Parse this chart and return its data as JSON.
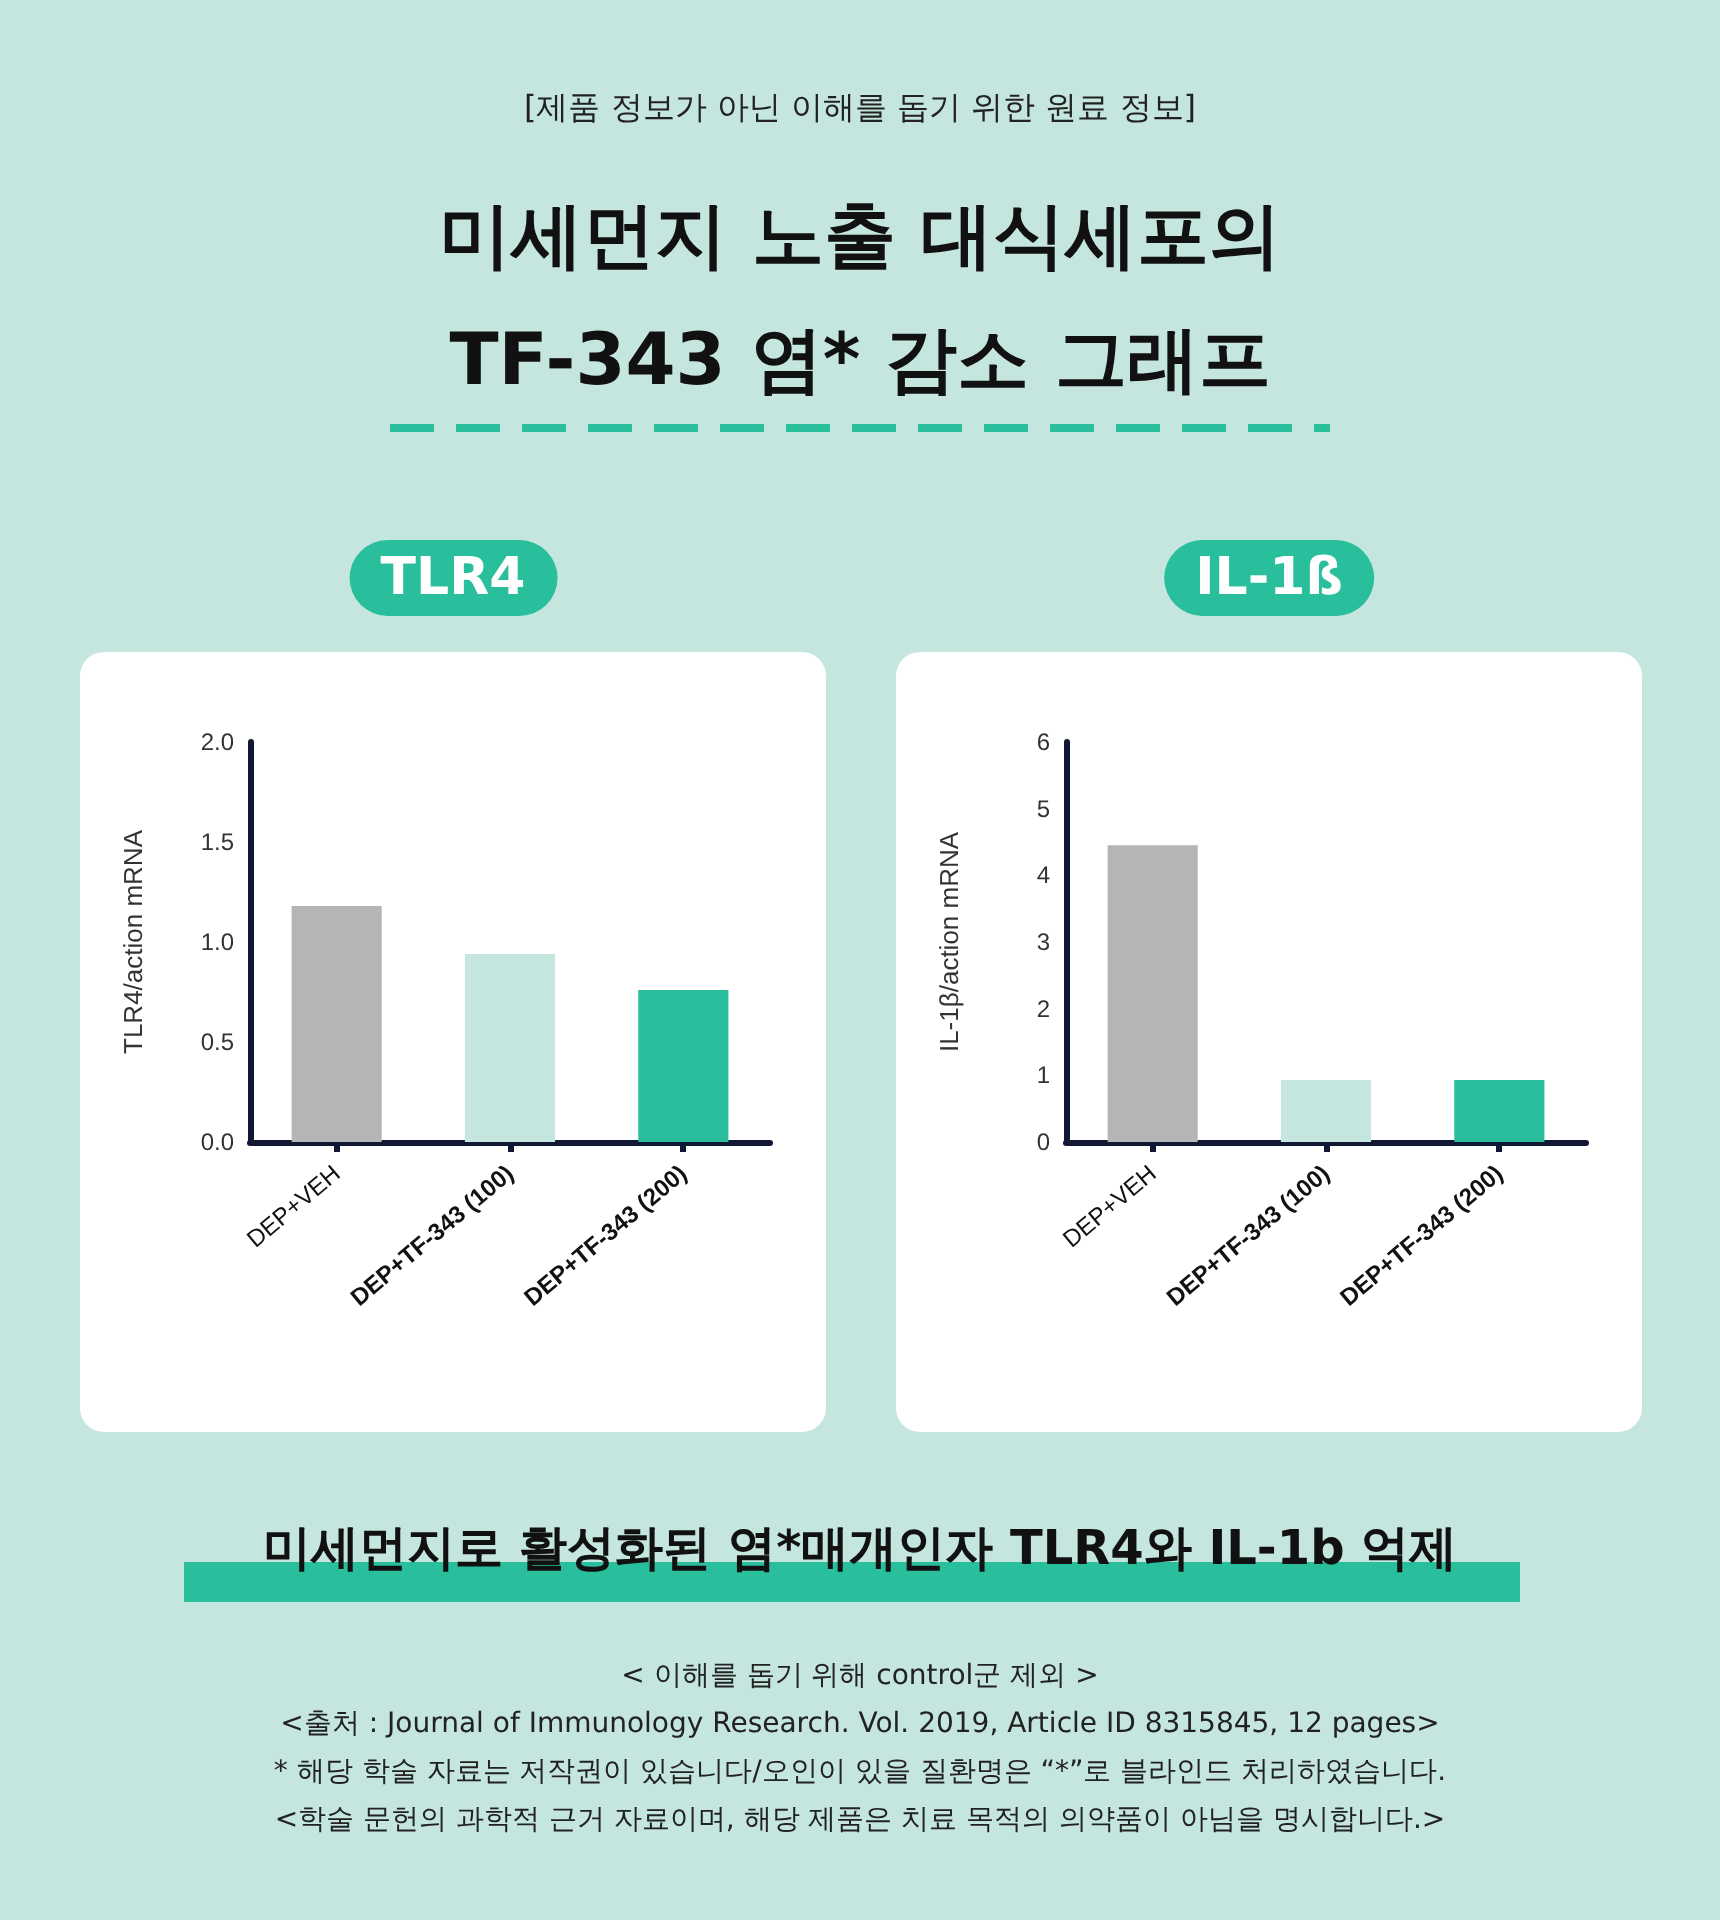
{
  "chart_data": [
    {
      "type": "other",
      "subtitle": "[제품 정보가 아닌 이해를 돕기 위한 원료 정보]",
      "title": "미세먼지 노출 대식세포의\nTF-343  염* 감소 그래프"
    },
    {
      "type": "bar",
      "title": "TLR4",
      "ylabel": "TLR4/action mRNA",
      "categories": [
        "DEP+VEH",
        "DEP+TF-343 (100)",
        "DEP+TF-343 (200)"
      ],
      "values": [
        1.18,
        0.94,
        0.76
      ],
      "colors": [
        "#b5b5b5",
        "#c4e6df",
        "#29bf9c"
      ],
      "ylim": [
        0,
        2
      ],
      "yticks": [
        {
          "value": 0,
          "label": "0.0"
        },
        0.5,
        {
          "value": 1,
          "label": "1.0"
        },
        1.5,
        {
          "value": 2,
          "label": "2.0"
        }
      ],
      "grid": false
    },
    {
      "type": "bar",
      "title": "IL-1ß",
      "ylabel": "IL-1β/action mRNA",
      "categories": [
        "DEP+VEH",
        "DEP+TF-343 (100)",
        "DEP+TF-343 (200)"
      ],
      "values": [
        4.45,
        0.93,
        0.93
      ],
      "colors": [
        "#b5b5b5",
        "#c4e6df",
        "#29bf9c"
      ],
      "ylim": [
        0,
        6
      ],
      "yticks": [
        0,
        1,
        2,
        3,
        4,
        5,
        6
      ],
      "grid": false
    },
    {
      "type": "other",
      "title": "미세먼지로 활성화된 염*매개인자 TLR4와 IL-1b 억제",
      "annotations": [
        "< 이해를 돕기 위해 control군 제외 >",
        "<출처 : Journal of Immunology Research. Vol. 2019, Article ID 8315845, 12 pages>",
        "* 해당 학술 자료는 저작권이 있습니다/오인이 있을 질환명은 “*”로 블라인드 처리하였습니다.",
        "<학술 문헌의 과학적 근거 자료이며, 해당 제품은 치료 목적의 의약품이 아님을 명시합니다.>"
      ]
    }
  ]
}
